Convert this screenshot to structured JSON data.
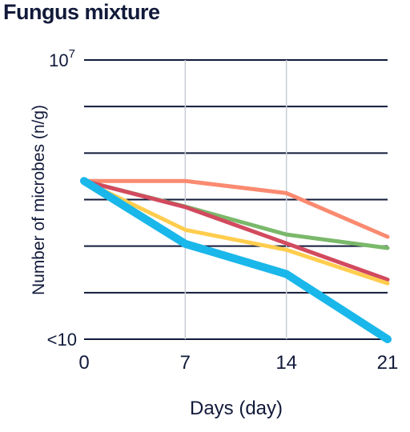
{
  "chart_data": {
    "type": "line",
    "title": "Fungus mixture",
    "xlabel": "Days (day)",
    "ylabel": "Number of microbes (n/g)",
    "x": [
      0,
      7,
      14,
      21
    ],
    "x_tick_labels": [
      "0",
      "7",
      "14",
      "21"
    ],
    "y_tick_labels": {
      "top_base": "10",
      "top_exp": "7",
      "bottom": "<10"
    },
    "ylim_log10": [
      1,
      7
    ],
    "grid": {
      "horizontal": true,
      "vertical_at_x": [
        7,
        14
      ]
    },
    "series": [
      {
        "color": "#fa8a70",
        "width": 5,
        "values": [
          4.4,
          4.4,
          4.14,
          3.2
        ]
      },
      {
        "color": "#7ab86a",
        "width": 5,
        "values": [
          4.4,
          3.85,
          3.25,
          2.96
        ]
      },
      {
        "color": "#d24a5e",
        "width": 5,
        "values": [
          4.4,
          3.84,
          3.06,
          2.28
        ]
      },
      {
        "color": "#ffcd4e",
        "width": 5,
        "values": [
          4.4,
          3.35,
          2.92,
          2.2
        ]
      },
      {
        "color": "#1ab7ea",
        "width": 10,
        "values": [
          4.4,
          3.05,
          2.4,
          1.0
        ]
      }
    ]
  }
}
